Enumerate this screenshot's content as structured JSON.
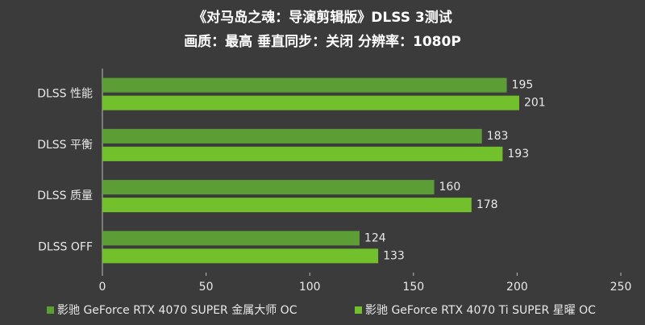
{
  "chart_data": {
    "type": "hbar",
    "title": "《对马岛之魂：导演剪辑版》DLSS 3测试",
    "subtitle": "画质：最高 垂直同步：关闭 分辨率：1080P",
    "categories": [
      "DLSS 性能",
      "DLSS 平衡",
      "DLSS 质量",
      "DLSS  OFF"
    ],
    "series": [
      {
        "name": "影驰 GeForce RTX 4070 SUPER 金属大师 OC",
        "color": "#5c9e35",
        "values": [
          195,
          183,
          160,
          124
        ]
      },
      {
        "name": "影驰 GeForce RTX 4070 Ti SUPER 星曜 OC",
        "color": "#72c12c",
        "values": [
          201,
          193,
          178,
          133
        ]
      }
    ],
    "xlim": [
      0,
      250
    ],
    "xticks": [
      0,
      50,
      100,
      150,
      200,
      250
    ]
  }
}
